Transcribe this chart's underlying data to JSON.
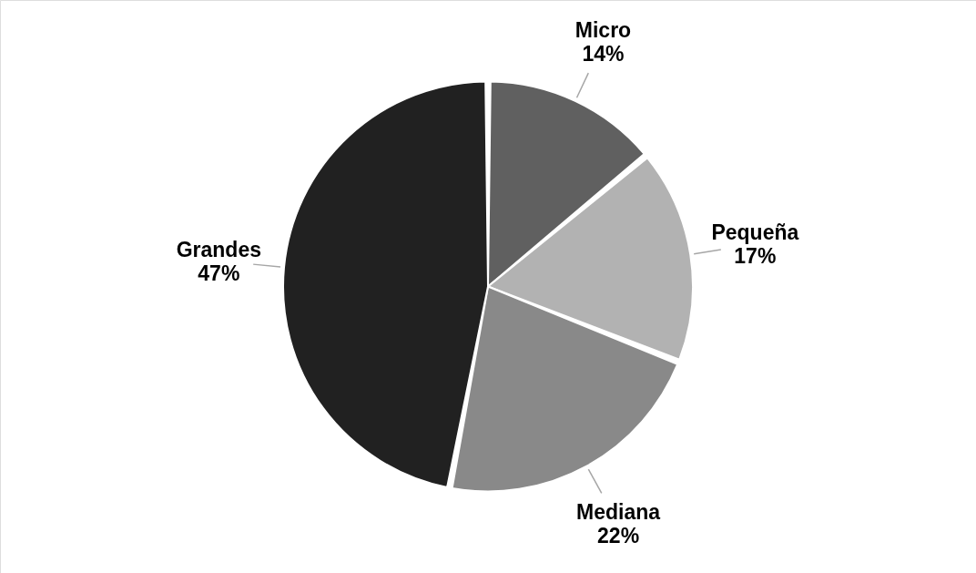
{
  "chart_data": {
    "type": "pie",
    "categories": [
      "Micro",
      "Pequeña",
      "Mediana",
      "Grandes"
    ],
    "values": [
      14,
      17,
      22,
      47
    ],
    "value_labels": [
      "14%",
      "17%",
      "22%",
      "47%"
    ],
    "colors": [
      "#606060",
      "#b2b2b2",
      "#898989",
      "#212121"
    ]
  }
}
